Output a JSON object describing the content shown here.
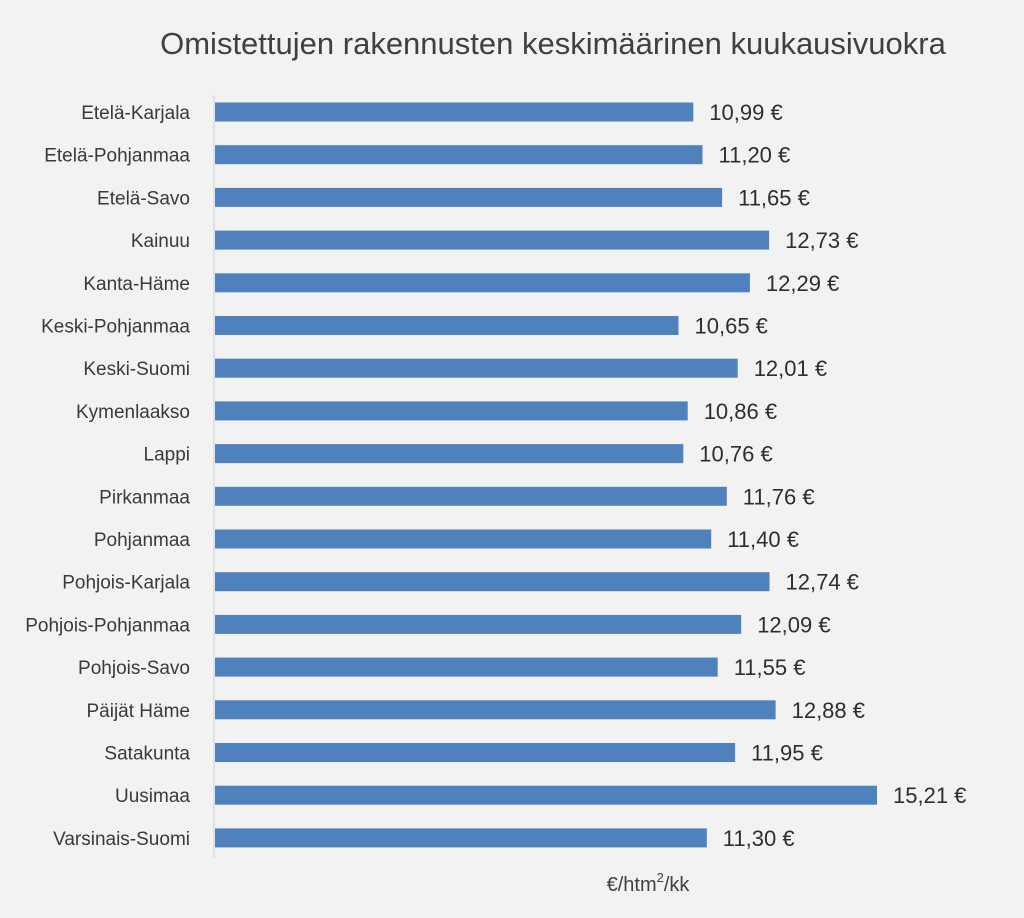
{
  "chart_data": {
    "type": "bar",
    "orientation": "horizontal",
    "title": "Omistettujen rakennusten keskimäärinen kuukausivuokra",
    "xlabel_base": "€/htm",
    "xlabel_sup": "2",
    "xlabel_tail": "/kk",
    "value_suffix": " €",
    "categories": [
      "Etelä-Karjala",
      "Etelä-Pohjanmaa",
      "Etelä-Savo",
      "Kainuu",
      "Kanta-Häme",
      "Keski-Pohjanmaa",
      "Keski-Suomi",
      "Kymenlaakso",
      "Lappi",
      "Pirkanmaa",
      "Pohjanmaa",
      "Pohjois-Karjala",
      "Pohjois-Pohjanmaa",
      "Pohjois-Savo",
      "Päijät Häme",
      "Satakunta",
      "Uusimaa",
      "Varsinais-Suomi"
    ],
    "values": [
      10.99,
      11.2,
      11.65,
      12.73,
      12.29,
      10.65,
      12.01,
      10.86,
      10.76,
      11.76,
      11.4,
      12.74,
      12.09,
      11.55,
      12.88,
      11.95,
      15.21,
      11.3
    ],
    "value_labels": [
      "10,99 €",
      "11,20 €",
      "11,65 €",
      "12,73 €",
      "12,29 €",
      "10,65 €",
      "12,01 €",
      "10,86 €",
      "10,76 €",
      "11,76 €",
      "11,40 €",
      "12,74 €",
      "12,09 €",
      "11,55 €",
      "12,88 €",
      "11,95 €",
      "15,21 €",
      "11,30 €"
    ],
    "xlim": [
      0,
      15.21
    ],
    "grid": false,
    "legend": false,
    "bar_color": "#4f81bd"
  }
}
